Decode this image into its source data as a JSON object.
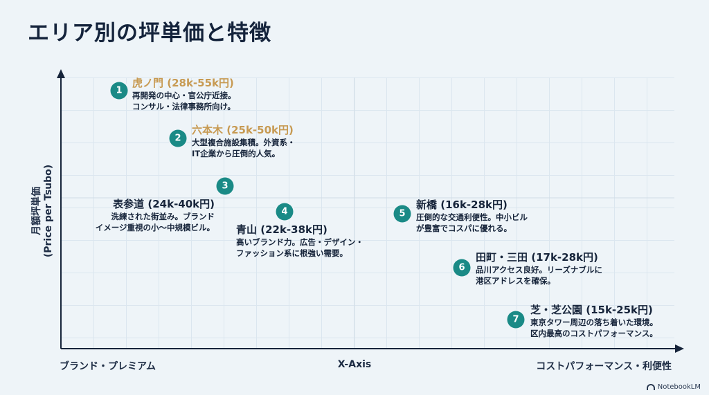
{
  "title": "エリア別の坪単価と特徴",
  "y_axis_label_line1": "月額坪単価",
  "y_axis_label_line2": "(Price per Tsubo)",
  "x_axis": {
    "left_label": "ブランド・プレミアム",
    "center_label": "X-Axis",
    "right_label": "コストパフォーマンス・利便性"
  },
  "colors": {
    "badge": "#1a8a86",
    "highlight": "#c79a52",
    "axis": "#16243a",
    "background": "#eef4f8"
  },
  "chart_data": {
    "type": "scatter",
    "title": "エリア別の坪単価と特徴",
    "xlabel": "X-Axis",
    "ylabel": "月額坪単価 (Price per Tsubo)",
    "x_tick_labels": [
      "ブランド・プレミアム",
      "コストパフォーマンス・利便性"
    ],
    "grid": true,
    "points": [
      {
        "number": "1",
        "name": "虎ノ門 (28k-55k円)",
        "description": [
          "再開発の中心・官公庁近接。",
          "コンサル・法律事務所向け。"
        ],
        "price_min_k": 28,
        "price_max_k": 55,
        "highlight": true
      },
      {
        "number": "2",
        "name": "六本木 (25k-50k円)",
        "description": [
          "大型複合施設集積。外資系・",
          "IT企業から圧倒的人気。"
        ],
        "price_min_k": 25,
        "price_max_k": 50,
        "highlight": true
      },
      {
        "number": "3",
        "name": "表参道 (24k-40k円)",
        "description": [
          "洗練された街並み。ブランド",
          "イメージ重視の小〜中規模ビル。"
        ],
        "price_min_k": 24,
        "price_max_k": 40,
        "highlight": false
      },
      {
        "number": "4",
        "name": "青山 (22k-38k円)",
        "description": [
          "高いブランド力。広告・デザイン・",
          "ファッション系に根強い需要。"
        ],
        "price_min_k": 22,
        "price_max_k": 38,
        "highlight": false
      },
      {
        "number": "5",
        "name": "新橋 (16k-28k円)",
        "description": [
          "圧倒的な交通利便性。中小ビル",
          "が豊富でコスパに優れる。"
        ],
        "price_min_k": 16,
        "price_max_k": 28,
        "highlight": false
      },
      {
        "number": "6",
        "name": "田町・三田 (17k-28k円)",
        "description": [
          "品川アクセス良好。リーズナブルに",
          "港区アドレスを確保。"
        ],
        "price_min_k": 17,
        "price_max_k": 28,
        "highlight": false
      },
      {
        "number": "7",
        "name": "芝・芝公園 (15k-25k円)",
        "description": [
          "東京タワー周辺の落ち着いた環境。",
          "区内最高のコストパフォーマンス。"
        ],
        "price_min_k": 15,
        "price_max_k": 25,
        "highlight": false
      }
    ]
  },
  "footer": {
    "brand": "NotebookLM",
    "icon": "notebooklm-logo-icon"
  }
}
